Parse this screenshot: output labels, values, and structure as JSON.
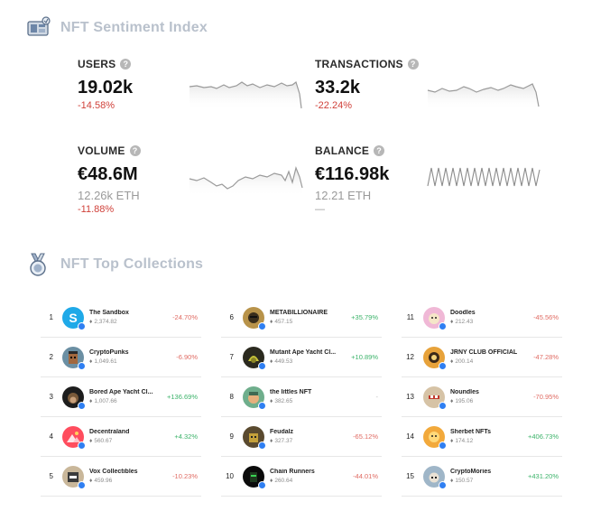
{
  "sentiment": {
    "title": "NFT Sentiment Index",
    "metrics": {
      "users": {
        "label": "USERS",
        "value": "19.02k",
        "change": "-14.58%"
      },
      "transactions": {
        "label": "TRANSACTIONS",
        "value": "33.2k",
        "change": "-22.24%"
      },
      "volume": {
        "label": "VOLUME",
        "value": "€48.6M",
        "sub": "12.26k ETH",
        "change": "-11.88%"
      },
      "balance": {
        "label": "BALANCE",
        "value": "€116.98k",
        "sub": "12.21 ETH",
        "change": "—"
      }
    }
  },
  "collections": {
    "title": "NFT Top Collections",
    "items": [
      {
        "rank": "1",
        "name": "The Sandbox",
        "volume": "2,374.82",
        "change": "-24.70%",
        "trend": "neg",
        "color": "#1fa9e8",
        "icon": "sandbox-s-icon"
      },
      {
        "rank": "2",
        "name": "CryptoPunks",
        "volume": "1,049.61",
        "change": "-6.90%",
        "trend": "neg",
        "color": "#6b8fa3",
        "icon": "punk-icon"
      },
      {
        "rank": "3",
        "name": "Bored Ape Yacht Cl...",
        "volume": "1,007.66",
        "change": "+136.69%",
        "trend": "pos",
        "color": "#1d1d1d",
        "icon": "ape-icon"
      },
      {
        "rank": "4",
        "name": "Decentraland",
        "volume": "560.67",
        "change": "+4.32%",
        "trend": "pos",
        "color": "#ff4d5e",
        "icon": "decentraland-icon"
      },
      {
        "rank": "5",
        "name": "Vox Collectibles",
        "volume": "459.96",
        "change": "-10.23%",
        "trend": "neg",
        "color": "#c9b79a",
        "icon": "vox-icon"
      },
      {
        "rank": "6",
        "name": "METABILLIONAIRE",
        "volume": "457.15",
        "change": "+35.79%",
        "trend": "pos",
        "color": "#b8934a",
        "icon": "metabillionaire-icon"
      },
      {
        "rank": "7",
        "name": "Mutant Ape Yacht Cl...",
        "volume": "449.53",
        "change": "+10.89%",
        "trend": "pos",
        "color": "#2b2a1f",
        "icon": "mutant-ape-icon"
      },
      {
        "rank": "8",
        "name": "the littles NFT",
        "volume": "382.65",
        "change": "-",
        "trend": "neutral",
        "color": "#6fae8c",
        "icon": "littles-icon"
      },
      {
        "rank": "9",
        "name": "Feudalz",
        "volume": "327.37",
        "change": "-65.12%",
        "trend": "neg",
        "color": "#5a4a2f",
        "icon": "feudalz-icon"
      },
      {
        "rank": "10",
        "name": "Chain Runners",
        "volume": "260.64",
        "change": "-44.01%",
        "trend": "neg",
        "color": "#0b0b0b",
        "icon": "chain-runners-icon"
      },
      {
        "rank": "11",
        "name": "Doodles",
        "volume": "212.43",
        "change": "-45.56%",
        "trend": "neg",
        "color": "#f0b8d6",
        "icon": "doodles-icon"
      },
      {
        "rank": "12",
        "name": "JRNY CLUB OFFICIAL",
        "volume": "200.14",
        "change": "-47.28%",
        "trend": "neg",
        "color": "#e7a23a",
        "icon": "jrny-icon"
      },
      {
        "rank": "13",
        "name": "Noundles",
        "volume": "195.06",
        "change": "-70.95%",
        "trend": "neg",
        "color": "#d6c3a6",
        "icon": "noundles-icon"
      },
      {
        "rank": "14",
        "name": "Sherbet NFTs",
        "volume": "174.12",
        "change": "+406.73%",
        "trend": "pos",
        "color": "#f2a93b",
        "icon": "sherbet-icon"
      },
      {
        "rank": "15",
        "name": "CryptoMories",
        "volume": "150.57",
        "change": "+431.20%",
        "trend": "pos",
        "color": "#9fb6c8",
        "icon": "cryptomories-icon"
      }
    ]
  }
}
